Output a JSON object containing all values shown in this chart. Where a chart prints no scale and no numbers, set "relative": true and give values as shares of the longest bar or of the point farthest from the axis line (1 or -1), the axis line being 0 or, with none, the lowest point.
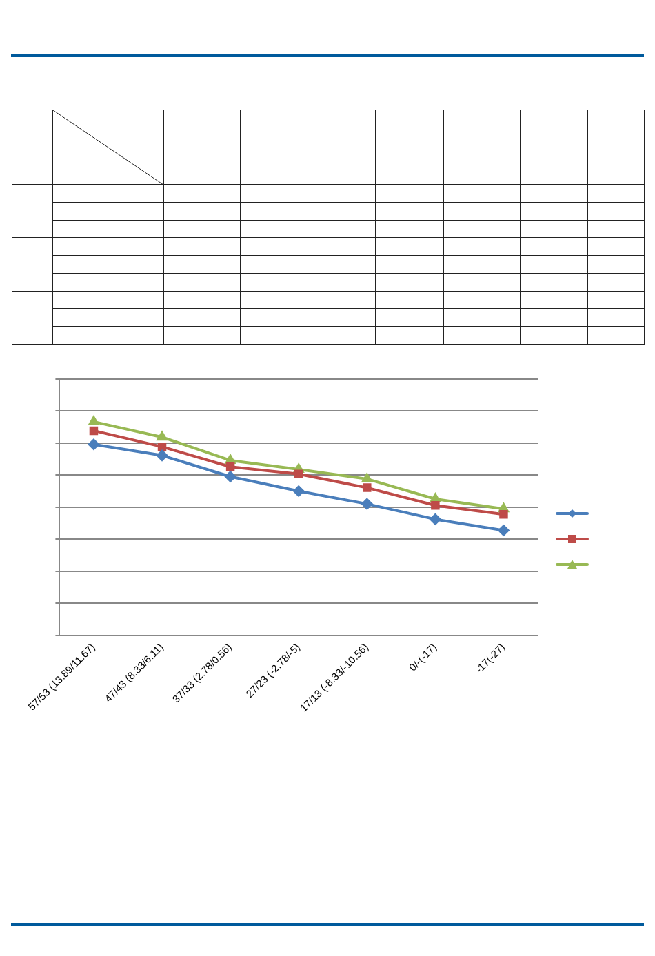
{
  "chart_data": {
    "type": "line",
    "relative": true,
    "grid": "y",
    "categories": [
      "57/53 (13.89/11.67)",
      "47/43 (8.33/6.11)",
      "37/33 (2.78/0.56)",
      "27/23 (-2.78/-5)",
      "17/13 (-8.33/-10.56)",
      "0/-(-17)",
      "-17(-27)"
    ],
    "series": [
      {
        "color": "#4a7ebb",
        "marker": "diamond",
        "values": [
          0.894,
          0.842,
          0.743,
          0.675,
          0.615,
          0.543,
          0.491
        ]
      },
      {
        "color": "#be4b48",
        "marker": "square",
        "values": [
          0.958,
          0.883,
          0.789,
          0.755,
          0.691,
          0.608,
          0.566
        ]
      },
      {
        "color": "#98b954",
        "marker": "triangle",
        "values": [
          1,
          0.928,
          0.819,
          0.777,
          0.732,
          0.638,
          0.592
        ]
      }
    ]
  }
}
